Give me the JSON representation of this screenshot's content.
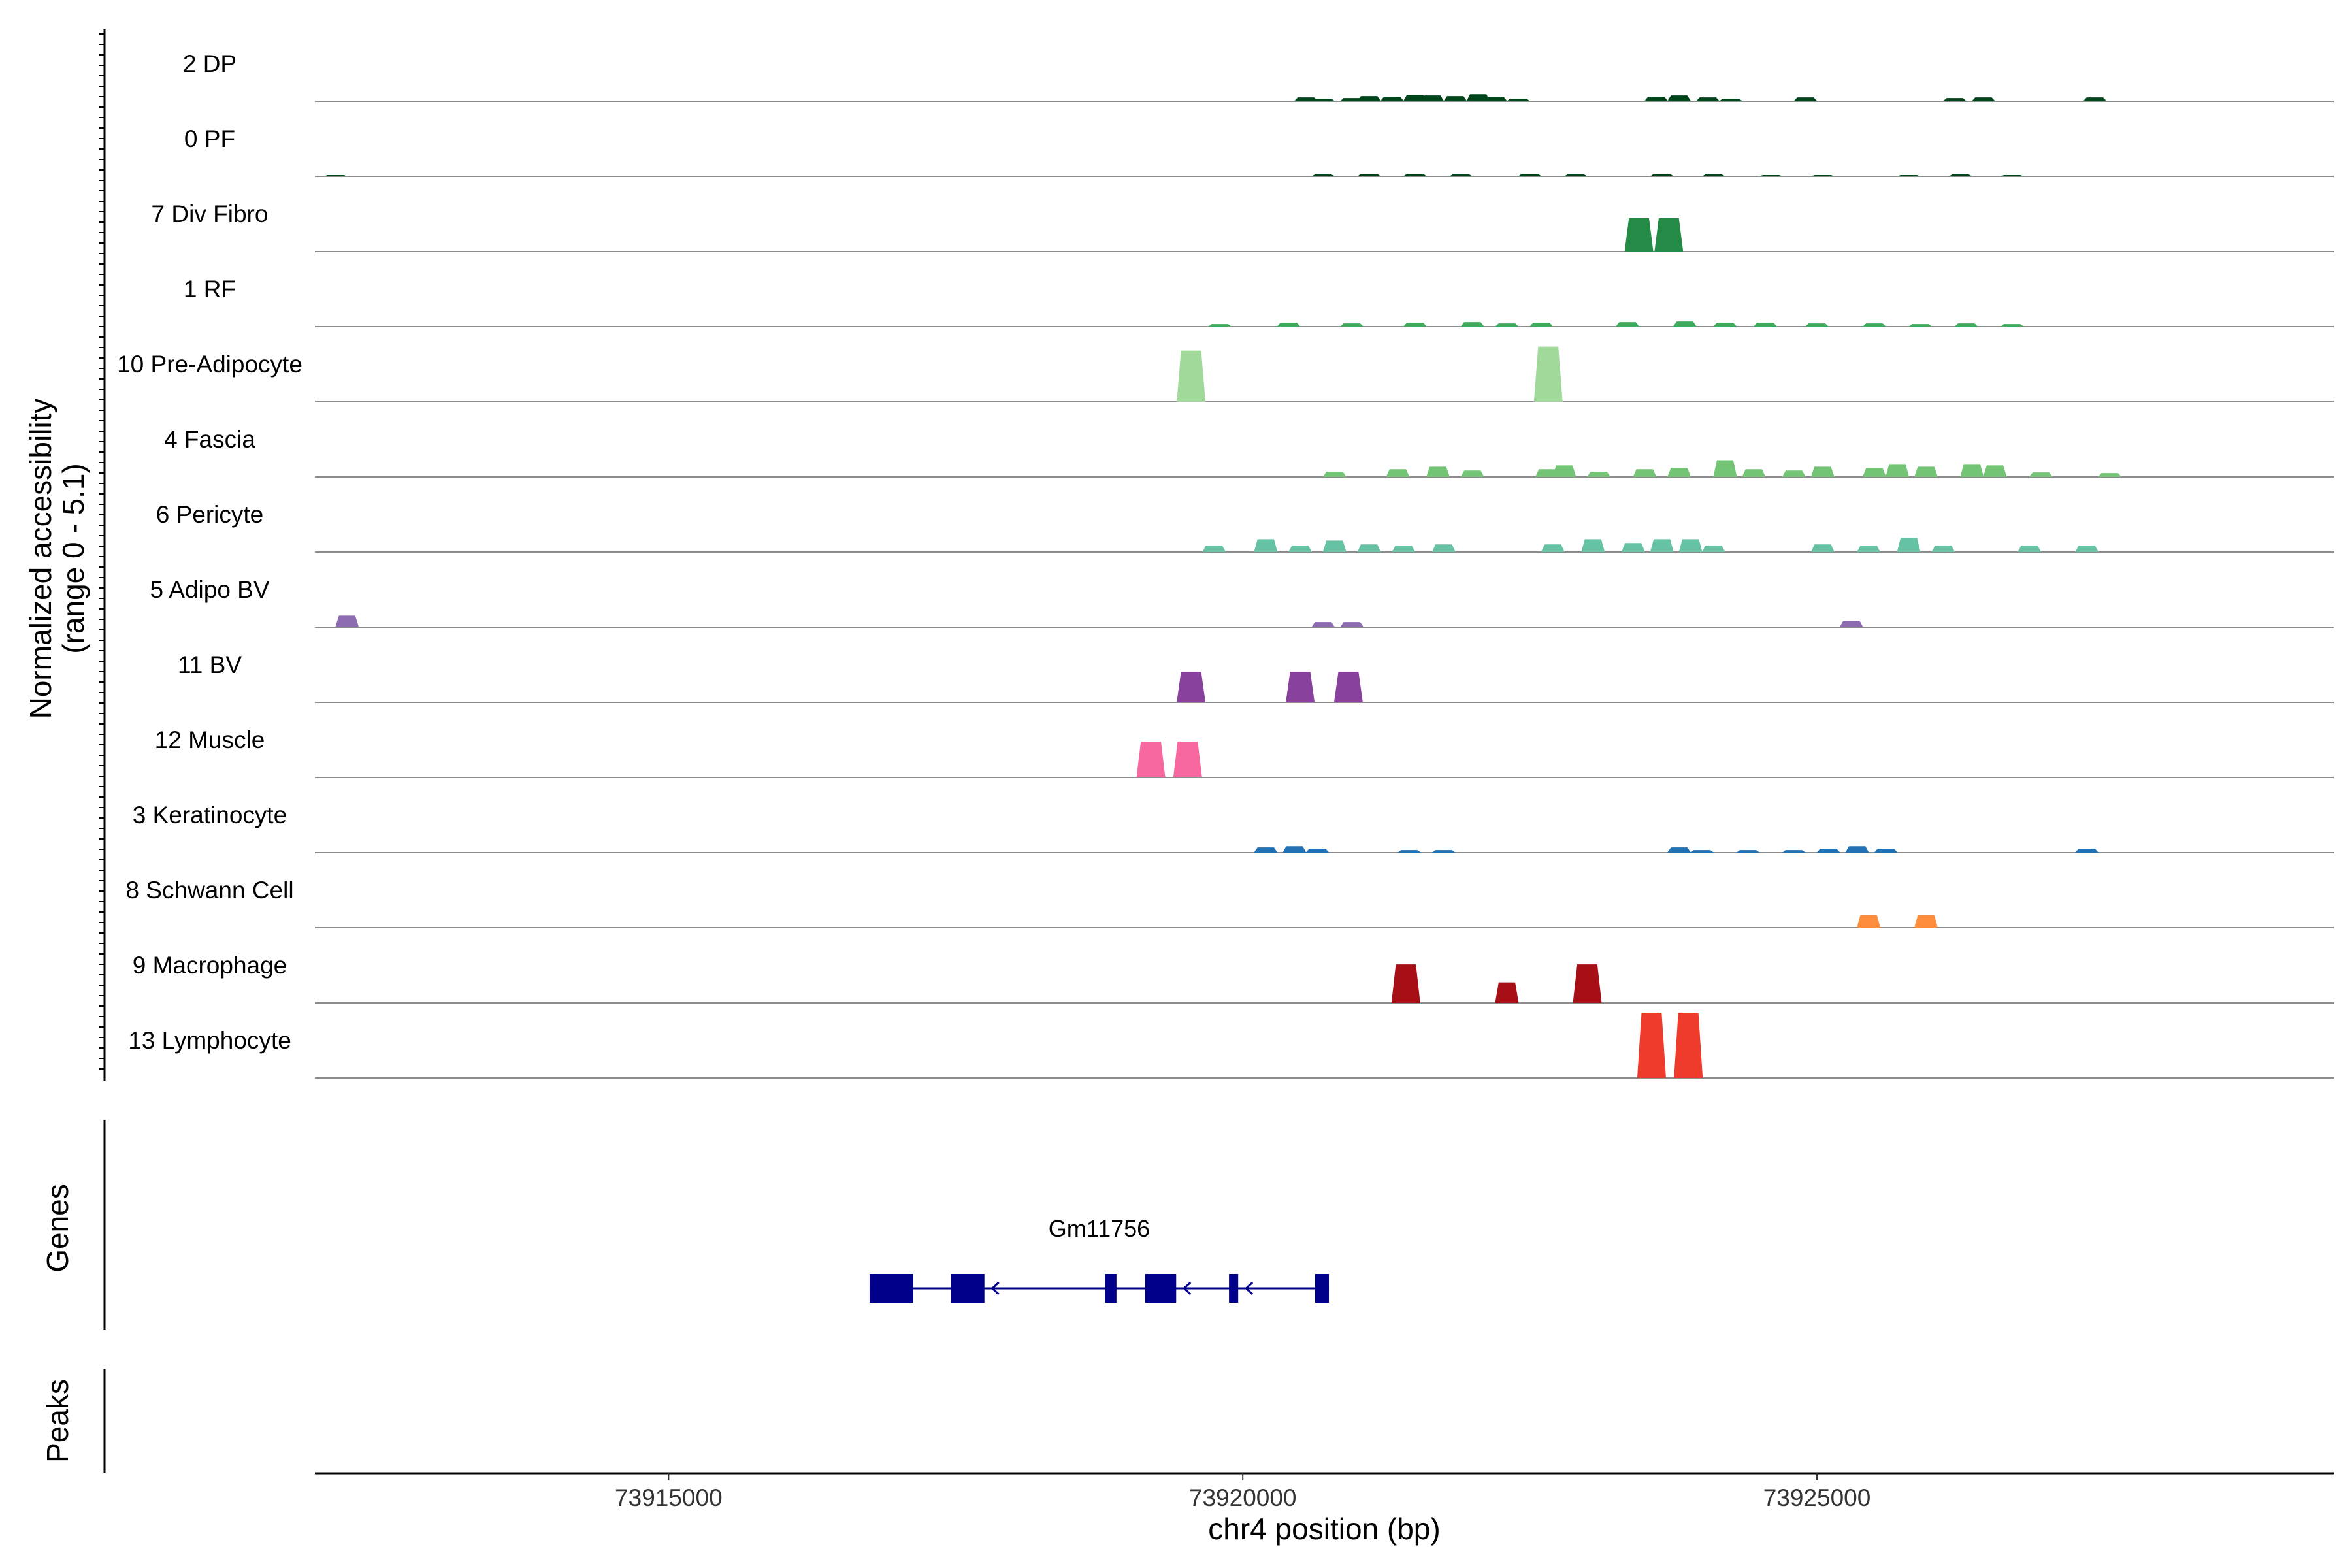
{
  "chart_data": {
    "type": "area",
    "xlabel": "chr4 position (bp)",
    "ylabel_line1": "Normalized accessibility",
    "ylabel_line2": "(range 0 - 5.1)",
    "ylim": [
      0,
      5.1
    ],
    "xlim": [
      73911920,
      73929500
    ],
    "xticks": [
      73915000,
      73920000,
      73925000
    ],
    "xtick_labels": [
      "73915000",
      "73920000",
      "73925000"
    ],
    "genes_label": "Genes",
    "peaks_label": "Peaks",
    "tracks": [
      {
        "label": "2 DP",
        "color": "#00441b",
        "peaks": [
          [
            73920550,
            0.3
          ],
          [
            73920700,
            0.2
          ],
          [
            73920950,
            0.25
          ],
          [
            73921100,
            0.4
          ],
          [
            73921300,
            0.35
          ],
          [
            73921500,
            0.5
          ],
          [
            73921650,
            0.45
          ],
          [
            73921850,
            0.4
          ],
          [
            73922050,
            0.55
          ],
          [
            73922200,
            0.35
          ],
          [
            73922400,
            0.2
          ],
          [
            73923600,
            0.35
          ],
          [
            73923800,
            0.45
          ],
          [
            73924050,
            0.3
          ],
          [
            73924250,
            0.2
          ],
          [
            73924900,
            0.3
          ],
          [
            73926200,
            0.25
          ],
          [
            73926450,
            0.3
          ],
          [
            73927420,
            0.3
          ]
        ]
      },
      {
        "label": "0 PF",
        "color": "#00441b",
        "peaks": [
          [
            73912100,
            0.1
          ],
          [
            73920700,
            0.15
          ],
          [
            73921100,
            0.2
          ],
          [
            73921500,
            0.2
          ],
          [
            73921900,
            0.15
          ],
          [
            73922500,
            0.2
          ],
          [
            73922900,
            0.15
          ],
          [
            73923650,
            0.2
          ],
          [
            73924100,
            0.15
          ],
          [
            73924600,
            0.1
          ],
          [
            73925050,
            0.1
          ],
          [
            73925800,
            0.1
          ],
          [
            73926250,
            0.15
          ],
          [
            73926700,
            0.1
          ]
        ]
      },
      {
        "label": "7 Div Fibro",
        "color": "#238b45",
        "peaks": [
          [
            73923450,
            2.6
          ],
          [
            73923710,
            2.6
          ]
        ]
      },
      {
        "label": "1 RF",
        "color": "#41ab5d",
        "peaks": [
          [
            73919800,
            0.2
          ],
          [
            73920400,
            0.3
          ],
          [
            73920950,
            0.25
          ],
          [
            73921500,
            0.3
          ],
          [
            73922000,
            0.35
          ],
          [
            73922300,
            0.25
          ],
          [
            73922600,
            0.3
          ],
          [
            73923350,
            0.35
          ],
          [
            73923850,
            0.4
          ],
          [
            73924200,
            0.3
          ],
          [
            73924550,
            0.3
          ],
          [
            73925000,
            0.25
          ],
          [
            73925500,
            0.25
          ],
          [
            73925900,
            0.2
          ],
          [
            73926300,
            0.25
          ],
          [
            73926700,
            0.2
          ]
        ]
      },
      {
        "label": "10 Pre-Adipocyte",
        "color": "#a1d99b",
        "peaks": [
          [
            73919550,
            4.0
          ],
          [
            73922660,
            4.3
          ]
        ]
      },
      {
        "label": "4 Fascia",
        "color": "#74c476",
        "peaks": [
          [
            73920800,
            0.4
          ],
          [
            73921350,
            0.6
          ],
          [
            73921700,
            0.8
          ],
          [
            73922000,
            0.5
          ],
          [
            73922650,
            0.6
          ],
          [
            73922800,
            0.9
          ],
          [
            73923100,
            0.4
          ],
          [
            73923500,
            0.6
          ],
          [
            73923800,
            0.7
          ],
          [
            73924200,
            1.3
          ],
          [
            73924450,
            0.6
          ],
          [
            73924800,
            0.5
          ],
          [
            73925050,
            0.8
          ],
          [
            73925500,
            0.7
          ],
          [
            73925700,
            1.0
          ],
          [
            73925950,
            0.8
          ],
          [
            73926350,
            1.0
          ],
          [
            73926550,
            0.9
          ],
          [
            73926950,
            0.35
          ],
          [
            73927550,
            0.3
          ]
        ]
      },
      {
        "label": "6 Pericyte",
        "color": "#66c2a4",
        "peaks": [
          [
            73919750,
            0.5
          ],
          [
            73920200,
            1.0
          ],
          [
            73920500,
            0.5
          ],
          [
            73920800,
            0.9
          ],
          [
            73921100,
            0.6
          ],
          [
            73921400,
            0.5
          ],
          [
            73921750,
            0.6
          ],
          [
            73922700,
            0.6
          ],
          [
            73923050,
            1.0
          ],
          [
            73923400,
            0.7
          ],
          [
            73923650,
            1.0
          ],
          [
            73923900,
            1.0
          ],
          [
            73924100,
            0.5
          ],
          [
            73925050,
            0.6
          ],
          [
            73925450,
            0.5
          ],
          [
            73925800,
            1.1
          ],
          [
            73926100,
            0.5
          ],
          [
            73926850,
            0.5
          ],
          [
            73927350,
            0.5
          ]
        ]
      },
      {
        "label": "5 Adipo BV",
        "color": "#8c6bb1",
        "peaks": [
          [
            73912200,
            0.9
          ],
          [
            73920700,
            0.4
          ],
          [
            73920950,
            0.4
          ],
          [
            73925300,
            0.5
          ]
        ]
      },
      {
        "label": "11 BV",
        "color": "#88419d",
        "peaks": [
          [
            73919550,
            2.4
          ],
          [
            73920500,
            2.4
          ],
          [
            73920920,
            2.4
          ]
        ]
      },
      {
        "label": "12 Muscle",
        "color": "#f768a1",
        "peaks": [
          [
            73919200,
            2.8
          ],
          [
            73919520,
            2.8
          ]
        ]
      },
      {
        "label": "3 Keratinocyte",
        "color": "#2171b5",
        "peaks": [
          [
            73920200,
            0.4
          ],
          [
            73920450,
            0.5
          ],
          [
            73920650,
            0.3
          ],
          [
            73921450,
            0.2
          ],
          [
            73921750,
            0.2
          ],
          [
            73923800,
            0.4
          ],
          [
            73924000,
            0.2
          ],
          [
            73924400,
            0.2
          ],
          [
            73924800,
            0.2
          ],
          [
            73925100,
            0.3
          ],
          [
            73925350,
            0.5
          ],
          [
            73925600,
            0.3
          ],
          [
            73927350,
            0.3
          ]
        ]
      },
      {
        "label": "8 Schwann Cell",
        "color": "#fd8d3c",
        "peaks": [
          [
            73925450,
            1.0
          ],
          [
            73925950,
            1.0
          ]
        ]
      },
      {
        "label": "9 Macrophage",
        "color": "#a50f15",
        "peaks": [
          [
            73921420,
            3.0
          ],
          [
            73922300,
            1.6
          ],
          [
            73923000,
            3.0
          ]
        ]
      },
      {
        "label": "13 Lymphocyte",
        "color": "#ef3b2c",
        "peaks": [
          [
            73923560,
            5.1
          ],
          [
            73923880,
            5.1
          ]
        ]
      }
    ],
    "genes": [
      {
        "name": "Gm11756",
        "color": "#00008b",
        "start": 73916750,
        "end": 73920750,
        "strand": "-",
        "exons": [
          [
            73916750,
            73917130
          ],
          [
            73917460,
            73917750
          ],
          [
            73918800,
            73918900
          ],
          [
            73919150,
            73919420
          ],
          [
            73919880,
            73919960
          ],
          [
            73920630,
            73920750
          ]
        ]
      }
    ]
  }
}
